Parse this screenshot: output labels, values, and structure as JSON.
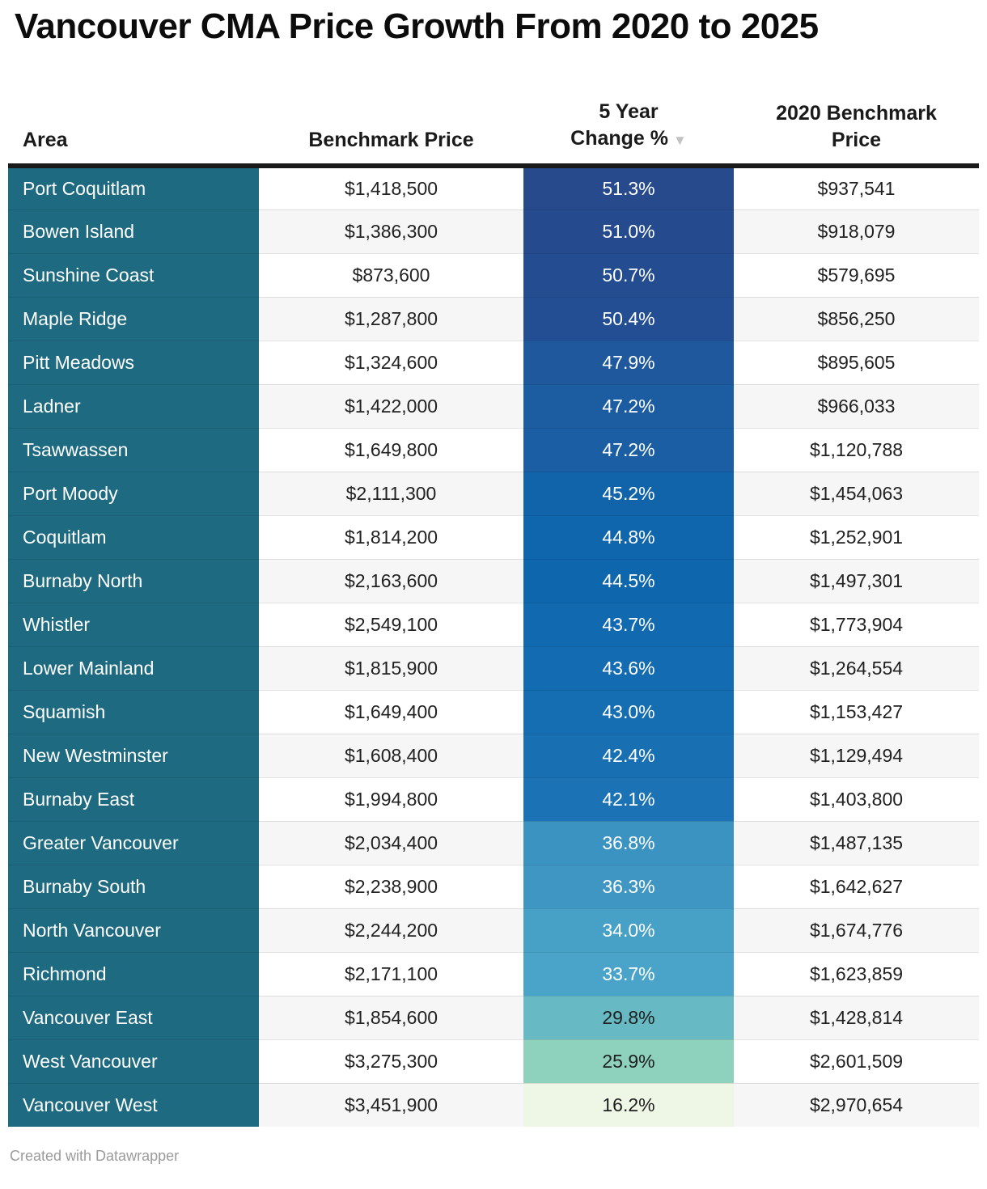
{
  "title": "Vancouver CMA Price Growth From 2020 to 2025",
  "header": {
    "col1": "Area",
    "col2": "Benchmark Price",
    "col3_line1": "5 Year",
    "col3_line2": "Change %",
    "col3_sort_icon": "▼",
    "col4_line1": "2020 Benchmark",
    "col4_line2": "Price"
  },
  "footer": {
    "credit": "Created with Datawrapper"
  },
  "colors": {
    "area_column_bg": "#1e6a81",
    "row_stripe": "#f6f6f6",
    "header_rule": "#1a1a1a",
    "sort_icon": "#c2c2c2",
    "change_text_light": "#ffffff",
    "change_text_dark": "#1f1f1f"
  },
  "chart_data": {
    "type": "table",
    "title": "Vancouver CMA Price Growth From 2020 to 2025",
    "columns": [
      "Area",
      "Benchmark Price",
      "5 Year Change %",
      "2020 Benchmark Price"
    ],
    "sorted_by": "5 Year Change %",
    "sort_direction": "descending",
    "rows": [
      {
        "area": "Port Coquitlam",
        "benchmark_price": "$1,418,500",
        "change_pct": "51.3%",
        "benchmark_2020": "$937,541",
        "change_bg": "#264a8c",
        "change_text": "light"
      },
      {
        "area": "Bowen Island",
        "benchmark_price": "$1,386,300",
        "change_pct": "51.0%",
        "benchmark_2020": "$918,079",
        "change_bg": "#254b8e",
        "change_text": "light"
      },
      {
        "area": "Sunshine Coast",
        "benchmark_price": "$873,600",
        "change_pct": "50.7%",
        "benchmark_2020": "$579,695",
        "change_bg": "#244c90",
        "change_text": "light"
      },
      {
        "area": "Maple Ridge",
        "benchmark_price": "$1,287,800",
        "change_pct": "50.4%",
        "benchmark_2020": "$856,250",
        "change_bg": "#234e93",
        "change_text": "light"
      },
      {
        "area": "Pitt Meadows",
        "benchmark_price": "$1,324,600",
        "change_pct": "47.9%",
        "benchmark_2020": "$895,605",
        "change_bg": "#1f589d",
        "change_text": "light"
      },
      {
        "area": "Ladner",
        "benchmark_price": "$1,422,000",
        "change_pct": "47.2%",
        "benchmark_2020": "$966,033",
        "change_bg": "#1c5ca1",
        "change_text": "light"
      },
      {
        "area": "Tsawwassen",
        "benchmark_price": "$1,649,800",
        "change_pct": "47.2%",
        "benchmark_2020": "$1,120,788",
        "change_bg": "#1b5ea3",
        "change_text": "light"
      },
      {
        "area": "Port Moody",
        "benchmark_price": "$2,111,300",
        "change_pct": "45.2%",
        "benchmark_2020": "$1,454,063",
        "change_bg": "#1164a9",
        "change_text": "light"
      },
      {
        "area": "Coquitlam",
        "benchmark_price": "$1,814,200",
        "change_pct": "44.8%",
        "benchmark_2020": "$1,252,901",
        "change_bg": "#0f66ac",
        "change_text": "light"
      },
      {
        "area": "Burnaby North",
        "benchmark_price": "$2,163,600",
        "change_pct": "44.5%",
        "benchmark_2020": "$1,497,301",
        "change_bg": "#0e67ad",
        "change_text": "light"
      },
      {
        "area": "Whistler",
        "benchmark_price": "$2,549,100",
        "change_pct": "43.7%",
        "benchmark_2020": "$1,773,904",
        "change_bg": "#116ab0",
        "change_text": "light"
      },
      {
        "area": "Lower Mainland",
        "benchmark_price": "$1,815,900",
        "change_pct": "43.6%",
        "benchmark_2020": "$1,264,554",
        "change_bg": "#136cb1",
        "change_text": "light"
      },
      {
        "area": "Squamish",
        "benchmark_price": "$1,649,400",
        "change_pct": "43.0%",
        "benchmark_2020": "$1,153,427",
        "change_bg": "#156db2",
        "change_text": "light"
      },
      {
        "area": "New Westminster",
        "benchmark_price": "$1,608,400",
        "change_pct": "42.4%",
        "benchmark_2020": "$1,129,494",
        "change_bg": "#1870b3",
        "change_text": "light"
      },
      {
        "area": "Burnaby East",
        "benchmark_price": "$1,994,800",
        "change_pct": "42.1%",
        "benchmark_2020": "$1,403,800",
        "change_bg": "#1b72b5",
        "change_text": "light"
      },
      {
        "area": "Greater Vancouver",
        "benchmark_price": "$2,034,400",
        "change_pct": "36.8%",
        "benchmark_2020": "$1,487,135",
        "change_bg": "#3b93c1",
        "change_text": "light"
      },
      {
        "area": "Burnaby South",
        "benchmark_price": "$2,238,900",
        "change_pct": "36.3%",
        "benchmark_2020": "$1,642,627",
        "change_bg": "#3f96c3",
        "change_text": "light"
      },
      {
        "area": "North Vancouver",
        "benchmark_price": "$2,244,200",
        "change_pct": "34.0%",
        "benchmark_2020": "$1,674,776",
        "change_bg": "#47a1c7",
        "change_text": "light"
      },
      {
        "area": "Richmond",
        "benchmark_price": "$2,171,100",
        "change_pct": "33.7%",
        "benchmark_2020": "$1,623,859",
        "change_bg": "#4aa4c9",
        "change_text": "light"
      },
      {
        "area": "Vancouver East",
        "benchmark_price": "$1,854,600",
        "change_pct": "29.8%",
        "benchmark_2020": "$1,428,814",
        "change_bg": "#67bac3",
        "change_text": "dark"
      },
      {
        "area": "West Vancouver",
        "benchmark_price": "$3,275,300",
        "change_pct": "25.9%",
        "benchmark_2020": "$2,601,509",
        "change_bg": "#8ed1bc",
        "change_text": "dark"
      },
      {
        "area": "Vancouver West",
        "benchmark_price": "$3,451,900",
        "change_pct": "16.2%",
        "benchmark_2020": "$2,970,654",
        "change_bg": "#eef7e6",
        "change_text": "dark"
      }
    ]
  }
}
